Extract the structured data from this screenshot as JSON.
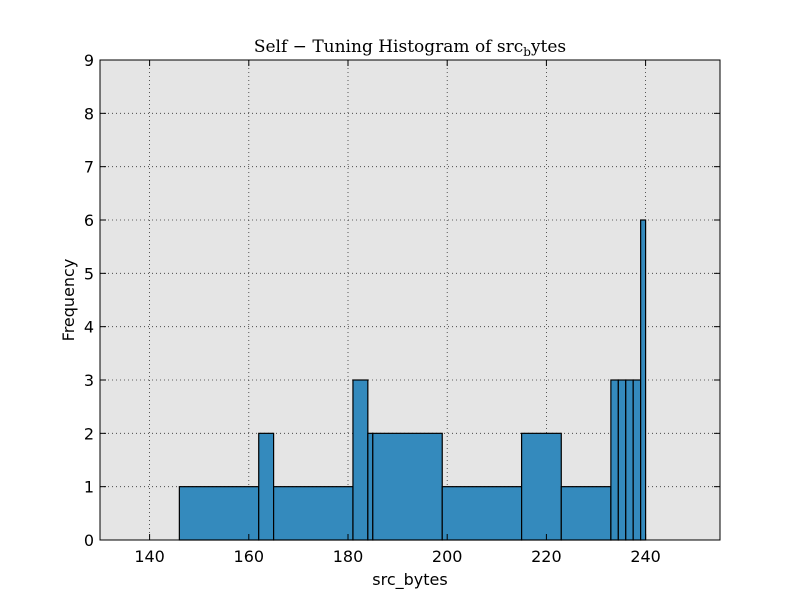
{
  "chart_data": {
    "type": "bar",
    "title": "Self − Tuning Histogram of src_bytes",
    "title_main": "Self − Tuning Histogram of src",
    "title_sub": "b",
    "title_tail": "ytes",
    "xlabel": "src_bytes",
    "ylabel": "Frequency",
    "xlim": [
      130,
      255
    ],
    "ylim": [
      0,
      9
    ],
    "xticks": [
      140,
      160,
      180,
      200,
      220,
      240
    ],
    "yticks": [
      0,
      1,
      2,
      3,
      4,
      5,
      6,
      7,
      8,
      9
    ],
    "grid": true,
    "bar_color": "#348ABD",
    "background_color": "#E5E5E5",
    "bins": [
      {
        "x0": 146,
        "x1": 162,
        "count": 1
      },
      {
        "x0": 162,
        "x1": 165,
        "count": 2
      },
      {
        "x0": 165,
        "x1": 181,
        "count": 1
      },
      {
        "x0": 181,
        "x1": 184,
        "count": 3
      },
      {
        "x0": 184,
        "x1": 185,
        "count": 2
      },
      {
        "x0": 185,
        "x1": 199,
        "count": 2
      },
      {
        "x0": 199,
        "x1": 215,
        "count": 1
      },
      {
        "x0": 215,
        "x1": 223,
        "count": 2
      },
      {
        "x0": 223,
        "x1": 233,
        "count": 1
      },
      {
        "x0": 233,
        "x1": 234.5,
        "count": 3
      },
      {
        "x0": 234.5,
        "x1": 236,
        "count": 3
      },
      {
        "x0": 236,
        "x1": 237.5,
        "count": 3
      },
      {
        "x0": 237.5,
        "x1": 239,
        "count": 3
      },
      {
        "x0": 239,
        "x1": 240,
        "count": 6
      }
    ]
  }
}
